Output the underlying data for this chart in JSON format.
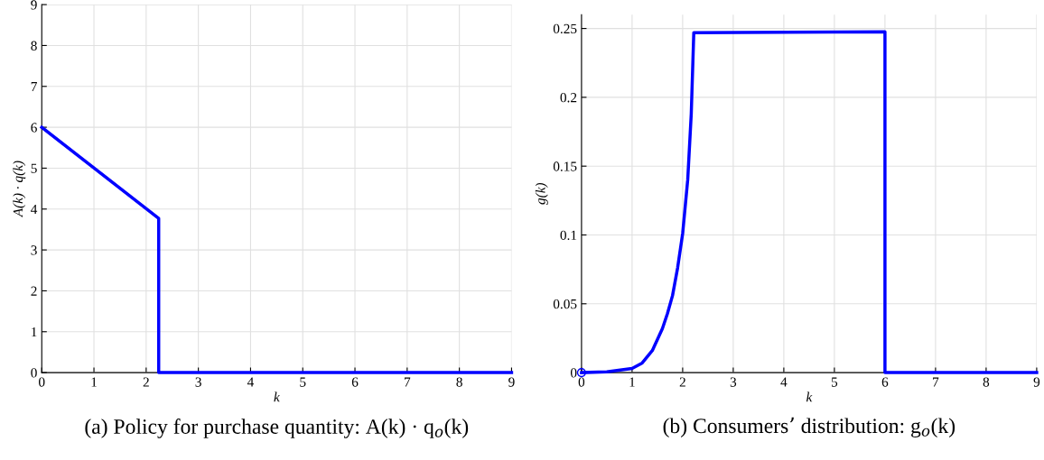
{
  "chart_data": [
    {
      "type": "line",
      "xlabel": "k",
      "ylabel": "A(k) · q(k)",
      "xlim": [
        0,
        9
      ],
      "ylim": [
        0,
        9
      ],
      "xticks": [
        0,
        1,
        2,
        3,
        4,
        5,
        6,
        7,
        8,
        9
      ],
      "yticks": [
        0,
        1,
        2,
        3,
        4,
        5,
        6,
        7,
        8,
        9
      ],
      "grid": true,
      "legend": false,
      "marker": "none",
      "line_style": "solid",
      "annotations": [
        "(a) Policy for purchase quantity: A(k) · q$_{o}$(k)"
      ],
      "series": [
        {
          "color": "#0000ff",
          "x": [
            0,
            2.24,
            2.24,
            9
          ],
          "values": [
            6,
            3.77,
            0,
            0
          ]
        }
      ]
    },
    {
      "type": "line",
      "xlabel": "k",
      "ylabel": "g(k)",
      "xlim": [
        0,
        9
      ],
      "ylim": [
        0,
        0.26
      ],
      "xticks": [
        0,
        1,
        2,
        3,
        4,
        5,
        6,
        7,
        8,
        9
      ],
      "yticks": [
        0,
        0.05,
        0.1,
        0.15,
        0.2,
        0.25
      ],
      "grid": true,
      "legend": false,
      "line_style": "solid",
      "annotations": [
        "(b) Consumers’ distribution: g$_{o}$(k)"
      ],
      "series": [
        {
          "color": "#0000ff",
          "marker": "none",
          "x": [
            0,
            0.5,
            1,
            1.2,
            1.4,
            1.6,
            1.7,
            1.8,
            1.9,
            2,
            2.1,
            2.17,
            2.22,
            4,
            6,
            6,
            9
          ],
          "values": [
            0,
            0.0005,
            0.003,
            0.007,
            0.016,
            0.032,
            0.043,
            0.056,
            0.076,
            0.101,
            0.14,
            0.188,
            0.247,
            0.2472,
            0.2476,
            0,
            0
          ]
        },
        {
          "type": "scatter",
          "color": "#0000ff",
          "marker": "circle",
          "x": [
            0
          ],
          "values": [
            0
          ]
        }
      ]
    }
  ]
}
